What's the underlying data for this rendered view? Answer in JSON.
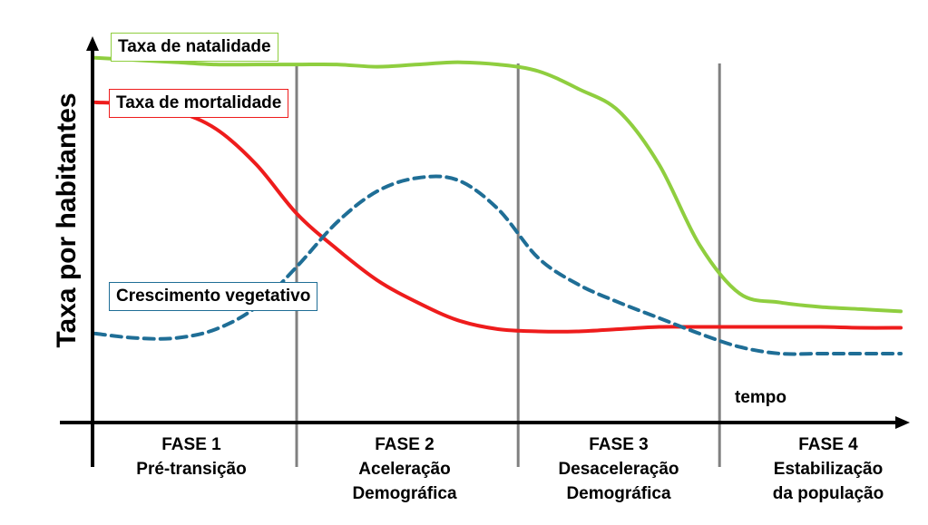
{
  "chart_data": {
    "type": "line",
    "ylabel": "Taxa por habitantes",
    "xlabel": "tempo",
    "x": [
      0,
      10,
      20,
      30,
      40,
      50,
      60,
      70,
      80,
      90,
      100,
      110,
      120,
      130,
      140,
      150,
      160,
      170,
      180,
      190,
      200
    ],
    "series": [
      {
        "name": "Taxa de natalidade",
        "color": "#8fce3f",
        "values": [
          82,
          81.5,
          81,
          80.5,
          80.5,
          80.5,
          80.5,
          80,
          80.5,
          81,
          80.5,
          79,
          75,
          70,
          58,
          40,
          29,
          27,
          26,
          25.5,
          25
        ]
      },
      {
        "name": "Taxa de mortalidade",
        "color": "#ee1c1c",
        "values": [
          72,
          71.5,
          70,
          66,
          58,
          47,
          39,
          32,
          27,
          23,
          21,
          20.5,
          20.5,
          21,
          21.5,
          21.5,
          21.5,
          21.5,
          21.5,
          21.3,
          21.3
        ]
      },
      {
        "name": "Crescimento vegetativo",
        "color": "#1f6e96",
        "dashed": true,
        "values": [
          20,
          19,
          19,
          21,
          26,
          35,
          45,
          52,
          55,
          54.5,
          48,
          37,
          31,
          27,
          23.5,
          20,
          17,
          15.5,
          15.5,
          15.5,
          15.5
        ]
      }
    ],
    "ylim": [
      0,
      95
    ],
    "phase_boundaries": [
      50,
      105,
      155
    ]
  },
  "labels": {
    "natalidade": "Taxa de natalidade",
    "mortalidade": "Taxa de mortalidade",
    "crescimento": "Crescimento vegetativo",
    "ylabel": "Taxa por habitantes",
    "xlabel": "tempo"
  },
  "phases": [
    {
      "title": "FASE 1",
      "line1": "Pré-transição",
      "line2": ""
    },
    {
      "title": "FASE 2",
      "line1": "Aceleração",
      "line2": "Demográfica"
    },
    {
      "title": "FASE 3",
      "line1": "Desaceleração",
      "line2": "Demográfica"
    },
    {
      "title": "FASE 4",
      "line1": "Estabilização",
      "line2": "da população"
    }
  ],
  "colors": {
    "natalidade": "#8fce3f",
    "mortalidade": "#ee1c1c",
    "crescimento": "#1f6e96",
    "boundary": "#808080",
    "axis": "#000000"
  }
}
